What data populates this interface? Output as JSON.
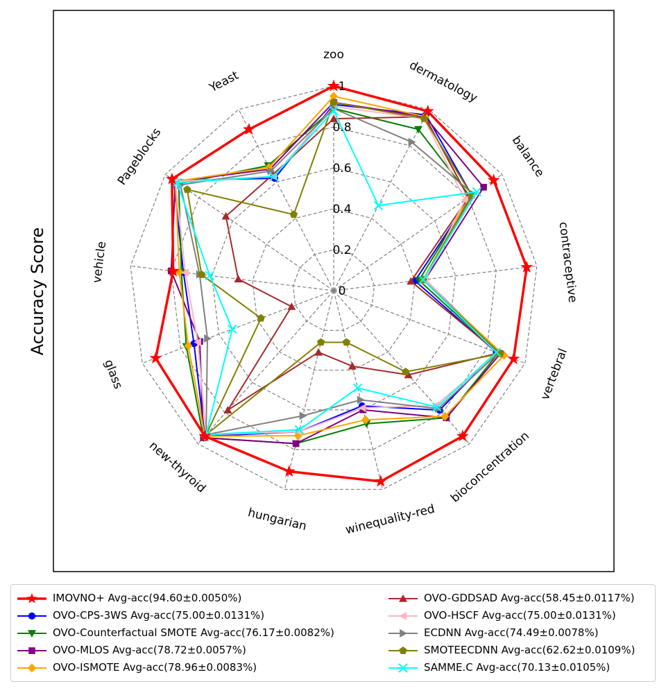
{
  "chart_data": {
    "type": "radar",
    "ylabel": "Accuracy Score",
    "rlim": [
      0,
      1
    ],
    "r_ticks": [
      0,
      0.2,
      0.4,
      0.6,
      0.8,
      1
    ],
    "r_tick_labels": [
      "0",
      "0.2",
      "0.4",
      "0.6",
      "0.8",
      "1"
    ],
    "grid": true,
    "legend_position": "bottom",
    "categories": [
      "zoo",
      "dermatology",
      "balance",
      "contraceptive",
      "vertebral",
      "bioconcentration",
      "winequality-red",
      "hungarian",
      "new-thyroid",
      "glass",
      "vehicle",
      "Pageblocks",
      "Yeast"
    ],
    "series": [
      {
        "name": "IMOVNO+",
        "legend": "IMOVNO+ Avg-acc(94.60±0.0050%)",
        "color": "#ff0000",
        "marker": "star",
        "linewidth": 3.5,
        "values": [
          1.0,
          0.99,
          0.95,
          0.95,
          0.94,
          0.95,
          0.96,
          0.91,
          0.95,
          0.93,
          0.79,
          0.96,
          0.89
        ]
      },
      {
        "name": "OVO-CPS-3WS",
        "legend": "OVO-CPS-3WS Avg-acc(75.00±0.0131%)",
        "color": "#0000ff",
        "marker": "circle",
        "linewidth": 2,
        "values": [
          0.91,
          0.97,
          0.82,
          0.4,
          0.85,
          0.78,
          0.58,
          0.71,
          0.95,
          0.73,
          0.74,
          0.95,
          0.62
        ]
      },
      {
        "name": "OVO-Counterfactual SMOTE",
        "legend": "OVO-Counterfactual SMOTE Avg-acc(76.17±0.0082%)",
        "color": "#008000",
        "marker": "triangle_down",
        "linewidth": 2,
        "values": [
          0.89,
          0.89,
          0.81,
          0.42,
          0.86,
          0.83,
          0.67,
          0.77,
          0.96,
          0.77,
          0.75,
          0.92,
          0.69
        ]
      },
      {
        "name": "OVO-MLOS",
        "legend": "OVO-MLOS Avg-acc(78.72±0.0057%)",
        "color": "#800080",
        "marker": "square",
        "linewidth": 2,
        "values": [
          0.92,
          0.96,
          0.89,
          0.45,
          0.87,
          0.83,
          0.6,
          0.77,
          0.96,
          0.7,
          0.8,
          0.94,
          0.67
        ]
      },
      {
        "name": "OVO-ISMOTE",
        "legend": "OVO-ISMOTE Avg-acc(78.96±0.0083%)",
        "color": "#ffa500",
        "marker": "diamond",
        "linewidth": 2,
        "values": [
          0.95,
          0.96,
          0.8,
          0.44,
          0.89,
          0.82,
          0.65,
          0.73,
          0.95,
          0.76,
          0.76,
          0.94,
          0.68
        ]
      },
      {
        "name": "OVO-GDDSAD",
        "legend": "OVO-GDDSAD Avg-acc(58.45±0.0117%)",
        "color": "#a52a2a",
        "marker": "triangle_up",
        "linewidth": 2,
        "values": [
          0.84,
          0.96,
          0.8,
          0.38,
          0.86,
          0.55,
          0.38,
          0.31,
          0.78,
          0.22,
          0.47,
          0.64,
          0.64
        ]
      },
      {
        "name": "OVO-HSCF",
        "legend": "OVO-HSCF Avg-acc(75.00±0.0131%)",
        "color": "#ffb6c1",
        "marker": "triangle_left",
        "linewidth": 2,
        "values": [
          0.9,
          0.95,
          0.78,
          0.45,
          0.86,
          0.75,
          0.59,
          0.71,
          0.94,
          0.71,
          0.73,
          0.94,
          0.63
        ]
      },
      {
        "name": "ECDNN",
        "legend": "ECDNN Avg-acc(74.49±0.0078%)",
        "color": "#808080",
        "marker": "triangle_right",
        "linewidth": 2,
        "values": [
          0.89,
          0.82,
          0.83,
          0.44,
          0.86,
          0.77,
          0.55,
          0.63,
          0.94,
          0.66,
          0.66,
          0.91,
          0.66
        ]
      },
      {
        "name": "SMOTEECDNN",
        "legend": "SMOTEECDNN Avg-acc(62.62±0.0109%)",
        "color": "#808000",
        "marker": "pentagon",
        "linewidth": 2,
        "values": [
          0.92,
          0.95,
          0.82,
          0.44,
          0.87,
          0.53,
          0.26,
          0.26,
          0.94,
          0.38,
          0.65,
          0.87,
          0.42
        ]
      },
      {
        "name": "SAMME.C",
        "legend": "SAMME.C Avg-acc(70.13±0.0105%)",
        "color": "#00ffff",
        "marker": "x",
        "linewidth": 2,
        "values": [
          0.88,
          0.47,
          0.85,
          0.44,
          0.85,
          0.76,
          0.49,
          0.7,
          0.94,
          0.53,
          0.61,
          0.93,
          0.63
        ]
      }
    ]
  }
}
